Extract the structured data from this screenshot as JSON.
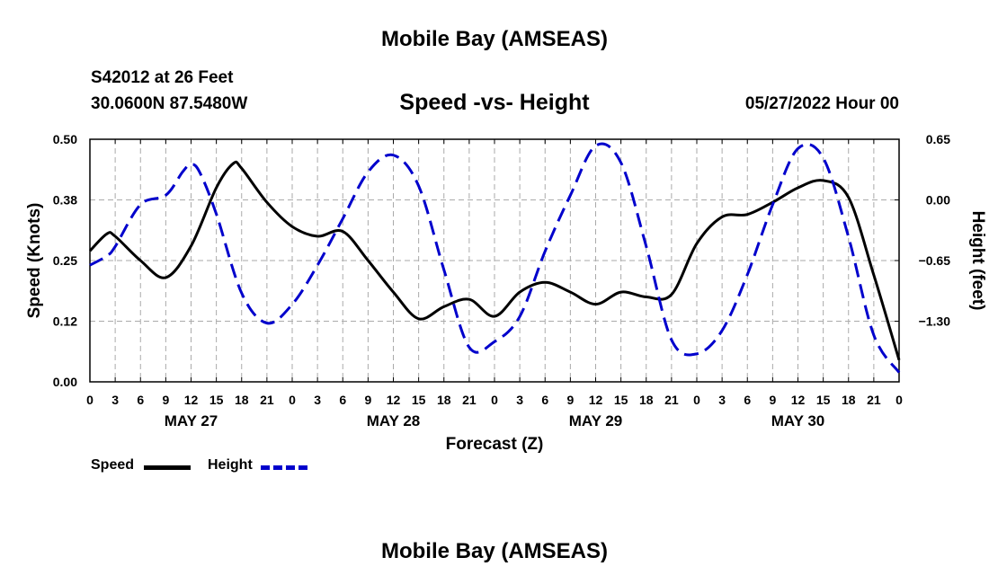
{
  "header": {
    "title": "Mobile Bay (AMSEAS)",
    "station": "S42012 at 26 Feet",
    "location": "30.0600N  87.5480W",
    "subtitle": "Speed -vs- Height",
    "datetime": "05/27/2022 Hour 00",
    "bottom_title": "Mobile Bay (AMSEAS)"
  },
  "legend": {
    "speed_label": "Speed",
    "height_label": "Height"
  },
  "colors": {
    "speed": "#000000",
    "height": "#0000cc",
    "grid": "#aaaaaa"
  },
  "chart_data": {
    "type": "line",
    "title": "Speed -vs- Height",
    "xlabel": "Forecast (Z)",
    "ylabel": "Speed (Knots)",
    "y2label": "Height (feet)",
    "xlim": [
      0,
      96
    ],
    "ylim": [
      0,
      0.5
    ],
    "y2lim": [
      -1.95,
      0.65
    ],
    "x_ticks": [
      0,
      3,
      6,
      9,
      12,
      15,
      18,
      21,
      24,
      27,
      30,
      33,
      36,
      39,
      42,
      45,
      48,
      51,
      54,
      57,
      60,
      63,
      66,
      69,
      72,
      75,
      78,
      81,
      84,
      87,
      90,
      93,
      96
    ],
    "x_tick_labels": [
      "0",
      "3",
      "6",
      "9",
      "12",
      "15",
      "18",
      "21",
      "0",
      "3",
      "6",
      "9",
      "12",
      "15",
      "18",
      "21",
      "0",
      "3",
      "6",
      "9",
      "12",
      "15",
      "18",
      "21",
      "0",
      "3",
      "6",
      "9",
      "12",
      "15",
      "18",
      "21",
      "0"
    ],
    "day_labels": [
      {
        "label": "MAY 27",
        "hour": 12
      },
      {
        "label": "MAY 28",
        "hour": 36
      },
      {
        "label": "MAY 29",
        "hour": 60
      },
      {
        "label": "MAY 30",
        "hour": 84
      }
    ],
    "y_ticks": [
      0.0,
      0.125,
      0.25,
      0.375,
      0.5
    ],
    "y_tick_labels": [
      "0.00",
      "0.12",
      "0.25",
      "0.38",
      "0.50"
    ],
    "y2_ticks": [
      0.65,
      0.0,
      -0.65,
      -1.3
    ],
    "y2_tick_labels": [
      "0.65",
      "0.00",
      "−0.65",
      "−1.30"
    ],
    "series": [
      {
        "name": "Speed",
        "axis": "left",
        "x": [
          0,
          2,
          3,
          6,
          9,
          12,
          15,
          17,
          18,
          21,
          24,
          27,
          30,
          33,
          36,
          39,
          42,
          45,
          48,
          51,
          54,
          57,
          60,
          63,
          66,
          69,
          72,
          75,
          78,
          81,
          84,
          87,
          90,
          93,
          96
        ],
        "values": [
          0.27,
          0.305,
          0.3,
          0.25,
          0.215,
          0.28,
          0.4,
          0.45,
          0.44,
          0.37,
          0.32,
          0.3,
          0.31,
          0.25,
          0.185,
          0.13,
          0.155,
          0.17,
          0.135,
          0.185,
          0.205,
          0.185,
          0.16,
          0.185,
          0.175,
          0.18,
          0.285,
          0.34,
          0.345,
          0.37,
          0.4,
          0.415,
          0.38,
          0.22,
          0.045
        ]
      },
      {
        "name": "Height",
        "axis": "right",
        "x": [
          0,
          2,
          3,
          6,
          9,
          11,
          12,
          13,
          15,
          18,
          21,
          24,
          27,
          30,
          33,
          36,
          39,
          42,
          45,
          48,
          51,
          54,
          57,
          60,
          63,
          66,
          69,
          72,
          75,
          78,
          81,
          84,
          87,
          90,
          93,
          96
        ],
        "values": [
          -0.7,
          -0.6,
          -0.5,
          -0.05,
          0.05,
          0.3,
          0.38,
          0.3,
          -0.15,
          -1.0,
          -1.32,
          -1.12,
          -0.7,
          -0.2,
          0.3,
          0.48,
          0.15,
          -0.75,
          -1.58,
          -1.52,
          -1.25,
          -0.55,
          0.05,
          0.58,
          0.4,
          -0.5,
          -1.5,
          -1.65,
          -1.4,
          -0.8,
          -0.05,
          0.55,
          0.45,
          -0.4,
          -1.45,
          -1.85
        ]
      }
    ]
  }
}
